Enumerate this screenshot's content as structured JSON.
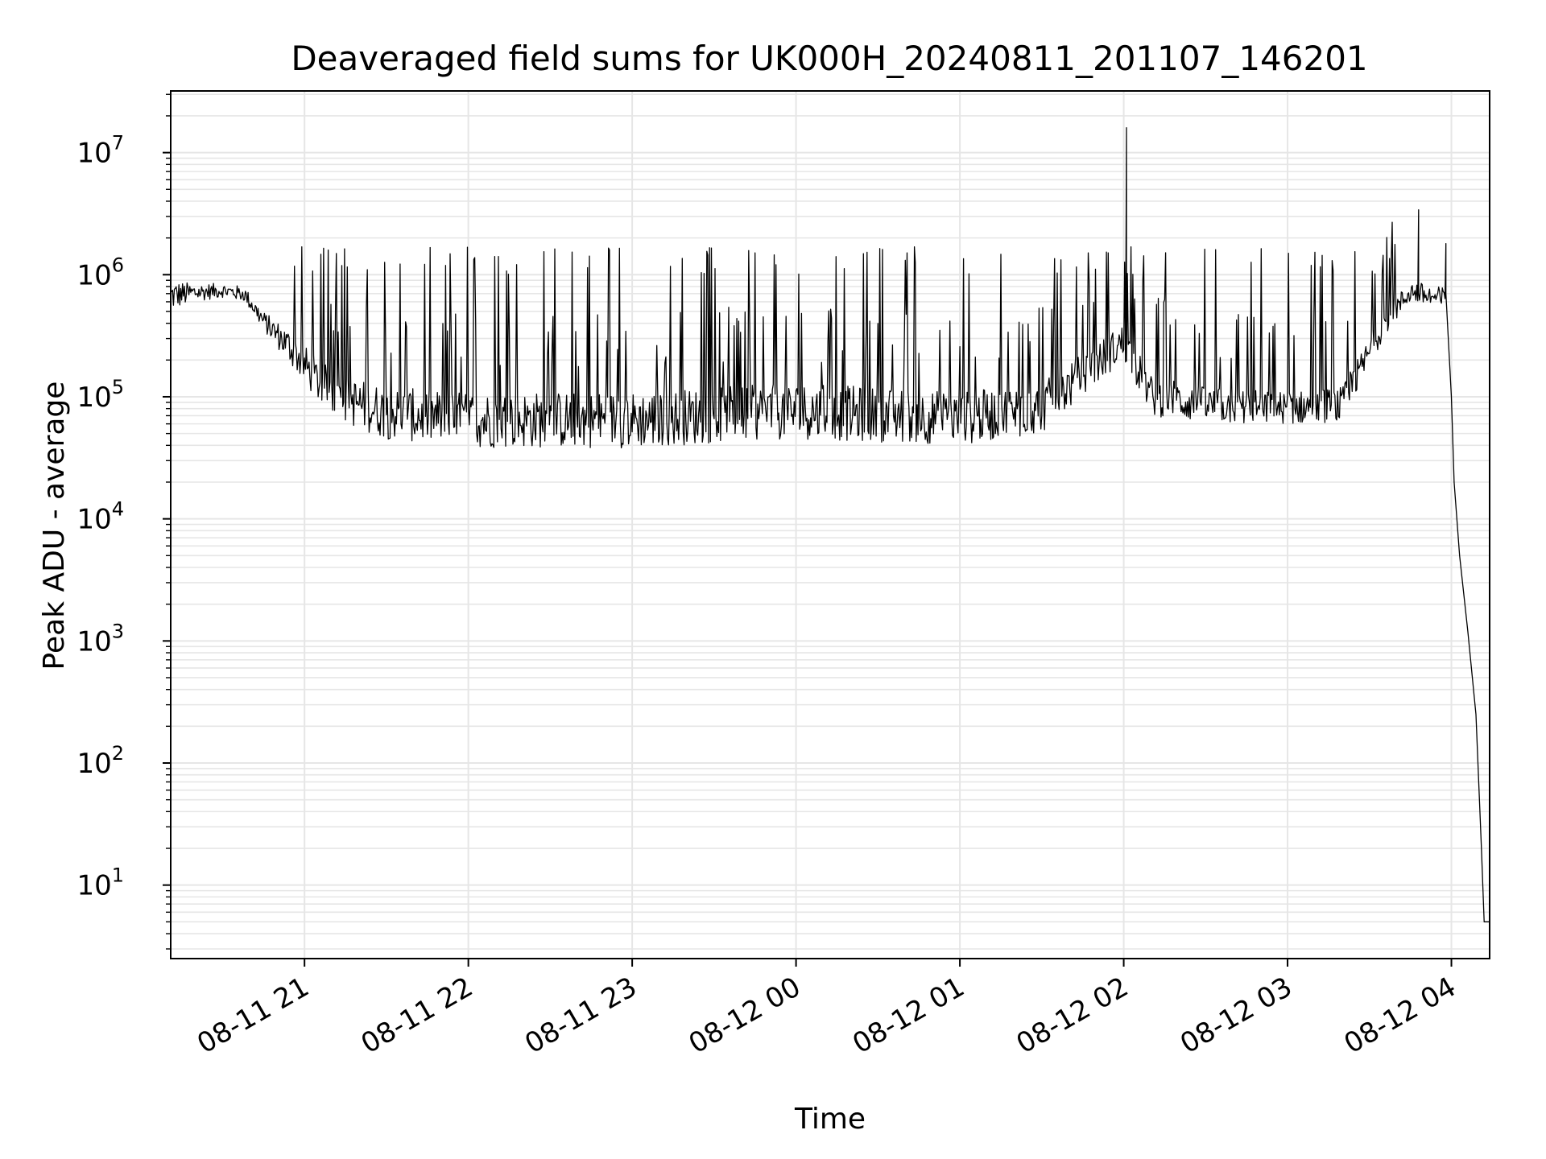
{
  "chart_data": {
    "type": "line",
    "title": "Deaveraged field sums for UK000H_20240811_201107_146201",
    "xlabel": "Time",
    "ylabel": "Peak ADU - average",
    "y_scale": "log",
    "grid": true,
    "x_ticks": [
      "08-11 21",
      "08-11 22",
      "08-11 23",
      "08-12 00",
      "08-12 01",
      "08-12 02",
      "08-12 03",
      "08-12 04"
    ],
    "y_ticks": [
      {
        "value": 10,
        "base": "10",
        "exp": "1"
      },
      {
        "value": 100,
        "base": "10",
        "exp": "2"
      },
      {
        "value": 1000,
        "base": "10",
        "exp": "3"
      },
      {
        "value": 10000,
        "base": "10",
        "exp": "4"
      },
      {
        "value": 100000,
        "base": "10",
        "exp": "5"
      },
      {
        "value": 1000000,
        "base": "10",
        "exp": "6"
      },
      {
        "value": 10000000,
        "base": "10",
        "exp": "7"
      }
    ],
    "xlim": [
      "2024-08-11 20:11",
      "2024-08-12 04:14"
    ],
    "ylim": [
      2.5,
      32000000
    ],
    "series": [
      {
        "color": "#000000",
        "envelope": [
          {
            "t": "2024-08-11 20:11",
            "low": 500000,
            "high": 900000
          },
          {
            "t": "2024-08-11 20:20",
            "low": 600000,
            "high": 850000
          },
          {
            "t": "2024-08-11 20:30",
            "low": 650000,
            "high": 850000
          },
          {
            "t": "2024-08-11 20:38",
            "low": 600000,
            "high": 800000
          },
          {
            "t": "2024-08-11 20:45",
            "low": 350000,
            "high": 500000
          },
          {
            "t": "2024-08-11 20:55",
            "low": 180000,
            "high": 350000
          },
          {
            "t": "2024-08-11 21:05",
            "low": 90000,
            "high": 200000
          },
          {
            "t": "2024-08-11 21:15",
            "low": 60000,
            "high": 150000
          },
          {
            "t": "2024-08-11 21:30",
            "low": 45000,
            "high": 120000
          },
          {
            "t": "2024-08-11 22:00",
            "low": 38000,
            "high": 110000
          },
          {
            "t": "2024-08-11 23:00",
            "low": 38000,
            "high": 110000
          },
          {
            "t": "2024-08-12 00:00",
            "low": 45000,
            "high": 130000
          },
          {
            "t": "2024-08-12 01:00",
            "low": 40000,
            "high": 110000
          },
          {
            "t": "2024-08-12 01:30",
            "low": 50000,
            "high": 130000
          },
          {
            "t": "2024-08-12 02:00",
            "low": 200000,
            "high": 400000
          },
          {
            "t": "2024-08-12 02:10",
            "low": 70000,
            "high": 150000
          },
          {
            "t": "2024-08-12 02:30",
            "low": 60000,
            "high": 120000
          },
          {
            "t": "2024-08-12 03:00",
            "low": 60000,
            "high": 110000
          },
          {
            "t": "2024-08-12 03:20",
            "low": 60000,
            "high": 120000
          },
          {
            "t": "2024-08-12 03:35",
            "low": 300000,
            "high": 500000
          },
          {
            "t": "2024-08-12 03:45",
            "low": 600000,
            "high": 900000
          },
          {
            "t": "2024-08-12 03:55",
            "low": 500000,
            "high": 800000
          }
        ],
        "spikes": [
          {
            "t": "2024-08-12 02:01",
            "value": 16000000
          },
          {
            "t": "2024-08-12 03:48",
            "value": 3400000
          },
          {
            "t": "2024-08-12 03:58",
            "value": 1800000
          }
        ],
        "tail": [
          {
            "t": "2024-08-12 03:58",
            "value": 700000
          },
          {
            "t": "2024-08-12 04:00",
            "value": 100000
          },
          {
            "t": "2024-08-12 04:01",
            "value": 20000
          },
          {
            "t": "2024-08-12 04:03",
            "value": 5000
          },
          {
            "t": "2024-08-12 04:06",
            "value": 1200
          },
          {
            "t": "2024-08-12 04:09",
            "value": 250
          },
          {
            "t": "2024-08-12 04:11",
            "value": 20
          },
          {
            "t": "2024-08-12 04:12",
            "value": 5
          },
          {
            "t": "2024-08-12 04:14",
            "value": 5
          }
        ],
        "spike_range": {
          "start": "2024-08-11 20:55",
          "end": "2024-08-12 03:45",
          "peak_low": 1000000,
          "peak_high": 1700000
        }
      }
    ]
  }
}
